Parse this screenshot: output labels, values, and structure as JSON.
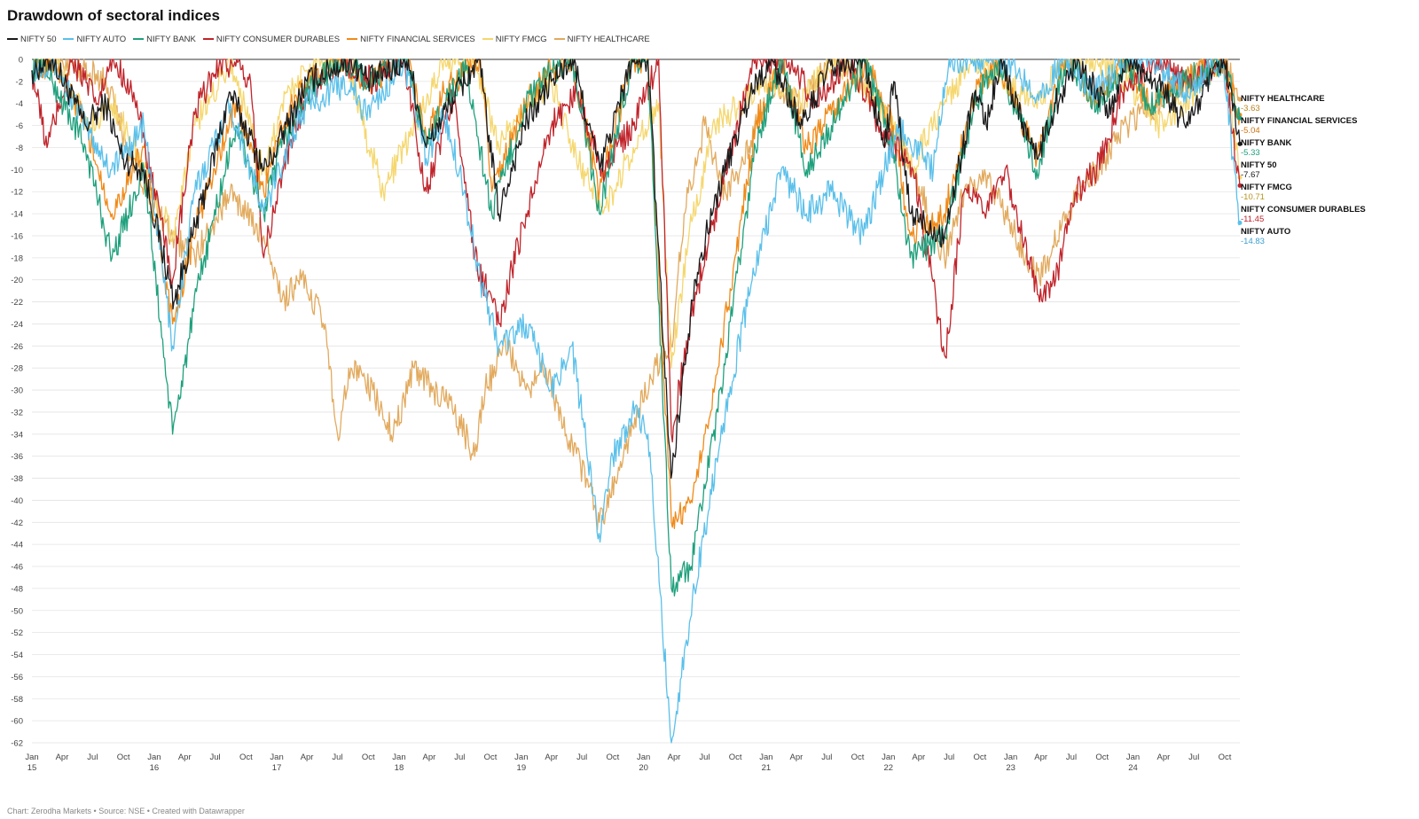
{
  "title": "Drawdown of sectoral indices",
  "footer": "Chart: Zerodha Markets • Source: NSE • Created with Datawrapper",
  "chart_data": {
    "type": "line",
    "title": "Drawdown of sectoral indices",
    "ylim": [
      -62,
      0
    ],
    "y_ticks": [
      0,
      -2,
      -4,
      -6,
      -8,
      -10,
      -12,
      -14,
      -16,
      -18,
      -20,
      -22,
      -24,
      -26,
      -28,
      -30,
      -32,
      -34,
      -36,
      -38,
      -40,
      -42,
      -44,
      -46,
      -48,
      -50,
      -52,
      -54,
      -56,
      -58,
      -60,
      -62
    ],
    "x_range": [
      "2015-01-01",
      "2024-11-15"
    ],
    "grid": "horizontal",
    "legend": "top-left",
    "x_ticks": [
      {
        "date": "2015-01-01",
        "label": "Jan",
        "year": "15"
      },
      {
        "date": "2015-04-01",
        "label": "Apr"
      },
      {
        "date": "2015-07-01",
        "label": "Jul"
      },
      {
        "date": "2015-10-01",
        "label": "Oct"
      },
      {
        "date": "2016-01-01",
        "label": "Jan",
        "year": "16"
      },
      {
        "date": "2016-04-01",
        "label": "Apr"
      },
      {
        "date": "2016-07-01",
        "label": "Jul"
      },
      {
        "date": "2016-10-01",
        "label": "Oct"
      },
      {
        "date": "2017-01-01",
        "label": "Jan",
        "year": "17"
      },
      {
        "date": "2017-04-01",
        "label": "Apr"
      },
      {
        "date": "2017-07-01",
        "label": "Jul"
      },
      {
        "date": "2017-10-01",
        "label": "Oct"
      },
      {
        "date": "2018-01-01",
        "label": "Jan",
        "year": "18"
      },
      {
        "date": "2018-04-01",
        "label": "Apr"
      },
      {
        "date": "2018-07-01",
        "label": "Jul"
      },
      {
        "date": "2018-10-01",
        "label": "Oct"
      },
      {
        "date": "2019-01-01",
        "label": "Jan",
        "year": "19"
      },
      {
        "date": "2019-04-01",
        "label": "Apr"
      },
      {
        "date": "2019-07-01",
        "label": "Jul"
      },
      {
        "date": "2019-10-01",
        "label": "Oct"
      },
      {
        "date": "2020-01-01",
        "label": "Jan",
        "year": "20"
      },
      {
        "date": "2020-04-01",
        "label": "Apr"
      },
      {
        "date": "2020-07-01",
        "label": "Jul"
      },
      {
        "date": "2020-10-01",
        "label": "Oct"
      },
      {
        "date": "2021-01-01",
        "label": "Jan",
        "year": "21"
      },
      {
        "date": "2021-04-01",
        "label": "Apr"
      },
      {
        "date": "2021-07-01",
        "label": "Jul"
      },
      {
        "date": "2021-10-01",
        "label": "Oct"
      },
      {
        "date": "2022-01-01",
        "label": "Jan",
        "year": "22"
      },
      {
        "date": "2022-04-01",
        "label": "Apr"
      },
      {
        "date": "2022-07-01",
        "label": "Jul"
      },
      {
        "date": "2022-10-01",
        "label": "Oct"
      },
      {
        "date": "2023-01-01",
        "label": "Jan",
        "year": "23"
      },
      {
        "date": "2023-04-01",
        "label": "Apr"
      },
      {
        "date": "2023-07-01",
        "label": "Jul"
      },
      {
        "date": "2023-10-01",
        "label": "Oct"
      },
      {
        "date": "2024-01-01",
        "label": "Jan",
        "year": "24"
      },
      {
        "date": "2024-04-01",
        "label": "Apr"
      },
      {
        "date": "2024-07-01",
        "label": "Jul"
      },
      {
        "date": "2024-10-01",
        "label": "Oct"
      }
    ],
    "series": [
      {
        "name": "NIFTY 50",
        "color": "#1a1a1a",
        "end_value": -7.67,
        "value_color": "#1a1a1a",
        "x": [
          "2015-01-01",
          "2015-03-04",
          "2015-06-10",
          "2015-08-10",
          "2015-09-28",
          "2015-11-30",
          "2016-02-29",
          "2016-06-01",
          "2016-08-15",
          "2016-11-23",
          "2017-01-02",
          "2017-04-01",
          "2017-08-11",
          "2017-10-01",
          "2018-01-29",
          "2018-03-23",
          "2018-06-01",
          "2018-08-28",
          "2018-10-26",
          "2019-01-10",
          "2019-04-01",
          "2019-06-03",
          "2019-08-23",
          "2019-11-28",
          "2020-01-14",
          "2020-03-23",
          "2020-06-01",
          "2020-08-10",
          "2020-11-15",
          "2021-01-15",
          "2021-04-19",
          "2021-07-01",
          "2021-10-19",
          "2021-12-20",
          "2022-01-17",
          "2022-03-07",
          "2022-06-17",
          "2022-09-15",
          "2022-10-20",
          "2022-12-01",
          "2023-03-20",
          "2023-05-15",
          "2023-07-20",
          "2023-10-26",
          "2023-12-10",
          "2024-03-15",
          "2024-06-04",
          "2024-09-27",
          "2024-11-15"
        ],
        "y": [
          -1,
          0,
          -6,
          -4,
          -9,
          -10,
          -22,
          -12,
          -3,
          -10,
          -8,
          -2,
          0,
          -2,
          0,
          -8,
          -4,
          0,
          -14,
          -6,
          -2,
          0,
          -10,
          0,
          0,
          -38,
          -20,
          -12,
          -3,
          0,
          -6,
          -1,
          0,
          -8,
          -2,
          -14,
          -16,
          -3,
          -6,
          0,
          -9,
          -4,
          0,
          -5,
          0,
          -2,
          -6,
          0,
          -7.67
        ]
      },
      {
        "name": "NIFTY AUTO",
        "color": "#5bc0ea",
        "end_value": -14.83,
        "value_color": "#3a9fd0",
        "x": [
          "2015-01-01",
          "2015-03-04",
          "2015-06-10",
          "2015-08-24",
          "2015-12-01",
          "2016-02-25",
          "2016-05-01",
          "2016-08-15",
          "2016-11-23",
          "2017-02-01",
          "2017-04-01",
          "2017-08-11",
          "2017-09-15",
          "2017-11-15",
          "2018-01-15",
          "2018-03-23",
          "2018-05-15",
          "2018-07-01",
          "2018-09-01",
          "2018-10-26",
          "2019-01-15",
          "2019-04-01",
          "2019-06-01",
          "2019-08-21",
          "2019-10-01",
          "2019-11-28",
          "2020-01-14",
          "2020-03-24",
          "2020-06-01",
          "2020-09-01",
          "2020-11-20",
          "2021-02-15",
          "2021-05-01",
          "2021-07-15",
          "2021-10-18",
          "2021-12-20",
          "2022-02-01",
          "2022-05-15",
          "2022-07-01",
          "2022-09-15",
          "2022-12-01",
          "2023-03-28",
          "2023-06-15",
          "2023-09-01",
          "2023-12-15",
          "2024-03-01",
          "2024-06-04",
          "2024-09-25",
          "2024-11-15"
        ],
        "y": [
          -1,
          0,
          -6,
          -10,
          -6,
          -26,
          -12,
          -4,
          -14,
          -8,
          -4,
          -2,
          -5,
          -3,
          0,
          -9,
          -5,
          -10,
          -20,
          -26,
          -24,
          -30,
          -26,
          -43,
          -36,
          -32,
          -34,
          -62,
          -48,
          -32,
          -20,
          -10,
          -14,
          -12,
          -16,
          -10,
          -6,
          -10,
          0,
          0,
          0,
          -3,
          0,
          -3,
          0,
          0,
          -3,
          0,
          -14.83
        ]
      },
      {
        "name": "NIFTY BANK",
        "color": "#1fa07c",
        "end_value": -5.33,
        "value_color": "#1fa07c",
        "x": [
          "2015-01-01",
          "2015-01-28",
          "2015-06-10",
          "2015-08-28",
          "2015-12-01",
          "2016-02-25",
          "2016-05-15",
          "2016-09-01",
          "2016-11-23",
          "2017-01-15",
          "2017-04-01",
          "2017-07-15",
          "2017-10-01",
          "2018-01-24",
          "2018-03-23",
          "2018-05-15",
          "2018-07-20",
          "2018-10-05",
          "2019-01-15",
          "2019-04-01",
          "2019-06-01",
          "2019-08-22",
          "2019-11-28",
          "2020-01-14",
          "2020-03-24",
          "2020-05-22",
          "2020-08-10",
          "2020-11-30",
          "2021-02-15",
          "2021-05-01",
          "2021-07-15",
          "2021-10-25",
          "2022-01-15",
          "2022-03-07",
          "2022-06-17",
          "2022-09-15",
          "2022-11-25",
          "2023-03-20",
          "2023-06-15",
          "2023-09-15",
          "2023-12-15",
          "2024-02-15",
          "2024-06-04",
          "2024-09-27",
          "2024-11-15"
        ],
        "y": [
          -1,
          0,
          -8,
          -18,
          -10,
          -34,
          -20,
          -6,
          -14,
          -8,
          -3,
          0,
          -2,
          0,
          -8,
          -4,
          -1,
          -14,
          -4,
          -1,
          0,
          -14,
          0,
          0,
          -48,
          -46,
          -32,
          -8,
          0,
          -10,
          -6,
          0,
          -8,
          -18,
          -16,
          -4,
          0,
          -10,
          0,
          -4,
          0,
          -4,
          -2,
          0,
          -5.33
        ]
      },
      {
        "name": "NIFTY CONSUMER DURABLES",
        "color": "#c0242b",
        "end_value": -11.45,
        "value_color": "#c0242b",
        "x": [
          "2015-01-01",
          "2015-02-15",
          "2015-05-01",
          "2015-07-15",
          "2015-09-01",
          "2015-11-01",
          "2016-02-25",
          "2016-05-01",
          "2016-07-15",
          "2016-10-15",
          "2016-11-23",
          "2017-01-20",
          "2017-04-01",
          "2017-07-15",
          "2017-10-15",
          "2018-01-15",
          "2018-03-23",
          "2018-06-15",
          "2018-08-15",
          "2018-10-26",
          "2019-01-15",
          "2019-04-01",
          "2019-06-15",
          "2019-09-01",
          "2019-12-01",
          "2020-02-15",
          "2020-03-24",
          "2020-06-01",
          "2020-09-01",
          "2020-11-30",
          "2021-03-01",
          "2021-06-01",
          "2021-09-01",
          "2021-12-01",
          "2022-03-15",
          "2022-06-20",
          "2022-08-15",
          "2022-10-15",
          "2022-12-15",
          "2023-03-28",
          "2023-05-15",
          "2023-07-15",
          "2023-09-15",
          "2023-12-01",
          "2024-03-01",
          "2024-06-01",
          "2024-09-27",
          "2024-11-15"
        ],
        "y": [
          -1,
          -8,
          0,
          -4,
          0,
          -3,
          -20,
          -5,
          0,
          -2,
          -18,
          -10,
          -3,
          0,
          -2,
          0,
          -12,
          -3,
          -18,
          -24,
          -14,
          -6,
          -3,
          -10,
          -6,
          0,
          -34,
          -22,
          -10,
          0,
          0,
          -4,
          0,
          -6,
          -10,
          -27,
          -12,
          -14,
          -10,
          -22,
          -20,
          -12,
          -10,
          -3,
          0,
          -2,
          0,
          -11.45
        ]
      },
      {
        "name": "NIFTY FINANCIAL SERVICES",
        "color": "#f08a19",
        "end_value": -5.04,
        "value_color": "#d07410",
        "x": [
          "2015-01-01",
          "2015-03-04",
          "2015-06-10",
          "2015-08-28",
          "2015-12-01",
          "2016-02-25",
          "2016-05-15",
          "2016-09-01",
          "2016-11-23",
          "2017-01-15",
          "2017-04-01",
          "2017-07-15",
          "2017-10-01",
          "2018-01-24",
          "2018-03-23",
          "2018-05-15",
          "2018-09-01",
          "2018-10-05",
          "2019-01-15",
          "2019-04-01",
          "2019-06-01",
          "2019-08-22",
          "2019-11-28",
          "2020-01-14",
          "2020-03-24",
          "2020-05-22",
          "2020-08-10",
          "2020-11-30",
          "2021-02-15",
          "2021-05-01",
          "2021-07-15",
          "2021-10-25",
          "2022-01-15",
          "2022-03-07",
          "2022-06-17",
          "2022-09-15",
          "2022-11-25",
          "2023-03-20",
          "2023-06-15",
          "2023-09-15",
          "2023-12-15",
          "2024-02-15",
          "2024-06-04",
          "2024-09-27",
          "2024-11-15"
        ],
        "y": [
          -1,
          0,
          -6,
          -14,
          -8,
          -24,
          -14,
          -4,
          -12,
          -6,
          -2,
          0,
          -2,
          0,
          -7,
          -3,
          0,
          -12,
          -4,
          -1,
          0,
          -12,
          0,
          0,
          -42,
          -40,
          -28,
          -6,
          0,
          -8,
          -5,
          0,
          -6,
          -16,
          -14,
          -3,
          0,
          -9,
          0,
          -4,
          0,
          -4,
          -2,
          0,
          -5.04
        ]
      },
      {
        "name": "NIFTY FMCG",
        "color": "#f5d76e",
        "end_value": -10.71,
        "value_color": "#b8941e",
        "x": [
          "2015-01-01",
          "2015-03-15",
          "2015-06-15",
          "2015-09-01",
          "2015-12-01",
          "2016-02-25",
          "2016-05-01",
          "2016-08-15",
          "2016-11-23",
          "2017-02-01",
          "2017-05-01",
          "2017-08-01",
          "2017-09-15",
          "2017-11-15",
          "2018-01-15",
          "2018-03-23",
          "2018-05-15",
          "2018-08-15",
          "2018-10-26",
          "2019-01-15",
          "2019-04-01",
          "2019-06-01",
          "2019-09-01",
          "2019-12-01",
          "2020-02-15",
          "2020-03-24",
          "2020-05-15",
          "2020-08-01",
          "2020-10-15",
          "2021-01-15",
          "2021-04-15",
          "2021-07-15",
          "2021-10-15",
          "2022-01-15",
          "2022-03-07",
          "2022-06-17",
          "2022-09-15",
          "2022-12-15",
          "2023-03-15",
          "2023-06-15",
          "2023-09-15",
          "2023-12-15",
          "2024-03-15",
          "2024-06-04",
          "2024-09-27",
          "2024-11-15"
        ],
        "y": [
          -1,
          0,
          -6,
          -4,
          -10,
          -16,
          -6,
          0,
          -10,
          -3,
          0,
          0,
          -6,
          -12,
          -8,
          -4,
          0,
          0,
          -8,
          -4,
          -2,
          -8,
          -14,
          -8,
          -4,
          -28,
          -16,
          -6,
          -4,
          -2,
          -4,
          0,
          -2,
          -6,
          -10,
          -4,
          0,
          -2,
          -4,
          0,
          0,
          -2,
          -6,
          -4,
          0,
          -10.71
        ]
      },
      {
        "name": "NIFTY HEALTHCARE",
        "color": "#e2aa5e",
        "end_value": -3.63,
        "value_color": "#b8861e",
        "x": [
          "2015-01-01",
          "2015-04-01",
          "2015-08-10",
          "2015-10-15",
          "2015-12-15",
          "2016-02-25",
          "2016-05-01",
          "2016-08-15",
          "2016-10-01",
          "2016-11-23",
          "2017-01-15",
          "2017-03-15",
          "2017-05-25",
          "2017-07-01",
          "2017-08-10",
          "2017-10-15",
          "2017-12-15",
          "2018-02-15",
          "2018-04-15",
          "2018-06-15",
          "2018-08-15",
          "2018-09-15",
          "2018-11-15",
          "2019-01-15",
          "2019-03-15",
          "2019-05-15",
          "2019-07-15",
          "2019-08-22",
          "2019-10-15",
          "2019-12-15",
          "2020-02-01",
          "2020-03-24",
          "2020-05-01",
          "2020-07-01",
          "2020-09-01",
          "2020-10-15",
          "2021-01-15",
          "2021-04-15",
          "2021-07-15",
          "2021-10-15",
          "2022-01-15",
          "2022-03-15",
          "2022-06-17",
          "2022-08-15",
          "2022-10-15",
          "2023-01-15",
          "2023-03-28",
          "2023-06-15",
          "2023-09-15",
          "2023-12-15",
          "2024-03-15",
          "2024-06-04",
          "2024-09-27",
          "2024-11-15"
        ],
        "y": [
          -1,
          0,
          -2,
          -8,
          -12,
          -16,
          -18,
          -12,
          -14,
          -16,
          -22,
          -20,
          -24,
          -34,
          -28,
          -30,
          -34,
          -28,
          -30,
          -32,
          -36,
          -30,
          -26,
          -30,
          -28,
          -34,
          -38,
          -42,
          -38,
          -32,
          -28,
          -26,
          -14,
          -6,
          -12,
          -10,
          -2,
          -4,
          0,
          -2,
          -6,
          -10,
          -18,
          -12,
          -10,
          -16,
          -20,
          -14,
          -10,
          -6,
          -4,
          -2,
          0,
          -3.63
        ]
      }
    ]
  }
}
